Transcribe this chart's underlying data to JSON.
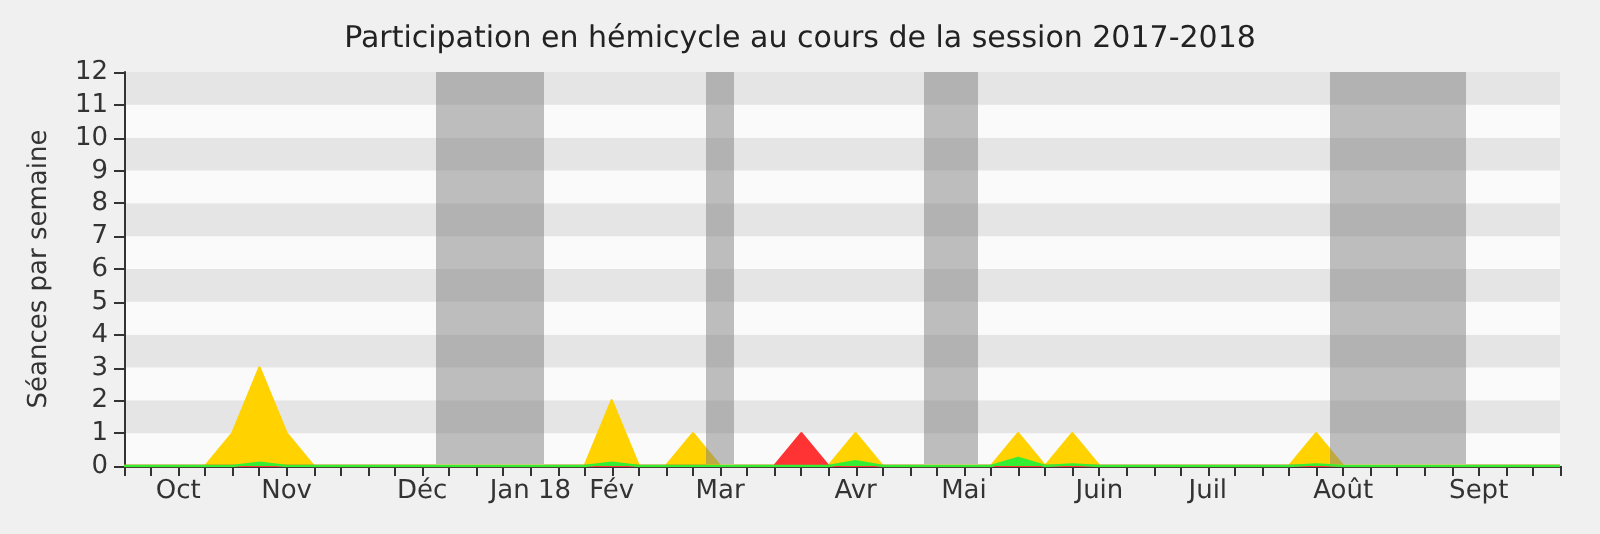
{
  "chart_data": {
    "type": "area",
    "title": "Participation en hémicycle au cours de la session 2017-2018",
    "ylabel": "Séances par semaine",
    "categories": [
      null,
      null,
      "Oct",
      null,
      null,
      null,
      "Nov",
      null,
      null,
      null,
      null,
      "Déc",
      null,
      null,
      null,
      "Jan 18",
      null,
      null,
      "Fév",
      null,
      null,
      null,
      "Mar",
      null,
      null,
      null,
      null,
      "Avr",
      null,
      null,
      null,
      "Mai",
      null,
      null,
      null,
      null,
      "Juin",
      null,
      null,
      null,
      "Juil",
      null,
      null,
      null,
      null,
      "Août",
      null,
      null,
      null,
      null,
      "Sept",
      null,
      null,
      null
    ],
    "series": [
      {
        "color": "#ffd200",
        "values": [
          0,
          0,
          0,
          0,
          1,
          3,
          1,
          0,
          0,
          0,
          0,
          0,
          0,
          0,
          0,
          0,
          0,
          0,
          2,
          0,
          0,
          1,
          0,
          0,
          0,
          0,
          0,
          1,
          0,
          0,
          0,
          0,
          0,
          1,
          0,
          1,
          0,
          0,
          0,
          0,
          0,
          0,
          0,
          0,
          1,
          0,
          0,
          0,
          0,
          0,
          0,
          0,
          0,
          0
        ]
      },
      {
        "color": "#ff3333",
        "values": [
          0,
          0,
          0,
          0,
          0,
          0,
          0,
          0,
          0,
          0,
          0,
          0,
          0,
          0,
          0,
          0,
          0,
          0,
          0,
          0,
          0,
          0,
          0,
          0,
          0,
          1,
          0,
          0,
          0,
          0,
          0,
          0,
          0,
          0,
          0,
          0,
          0,
          0,
          0,
          0,
          0,
          0,
          0,
          0,
          0,
          0,
          0,
          0,
          0,
          0,
          0,
          0,
          0,
          0
        ]
      },
      {
        "color": "#33ee33",
        "values": [
          0,
          0,
          0,
          0,
          0,
          0.1,
          0,
          0,
          0,
          0,
          0,
          0,
          0,
          0,
          0,
          0,
          0,
          0,
          0.1,
          0,
          0,
          0,
          0,
          0,
          0,
          0,
          0,
          0.15,
          0,
          0,
          0,
          0,
          0,
          0.25,
          0,
          0.05,
          0,
          0,
          0,
          0,
          0,
          0,
          0,
          0,
          0.05,
          0,
          0,
          0,
          0,
          0,
          0,
          0,
          0,
          0
        ]
      }
    ],
    "ylim": [
      0,
      12
    ],
    "yticks": [
      0,
      1,
      2,
      3,
      4,
      5,
      6,
      7,
      8,
      9,
      10,
      11,
      12
    ]
  }
}
